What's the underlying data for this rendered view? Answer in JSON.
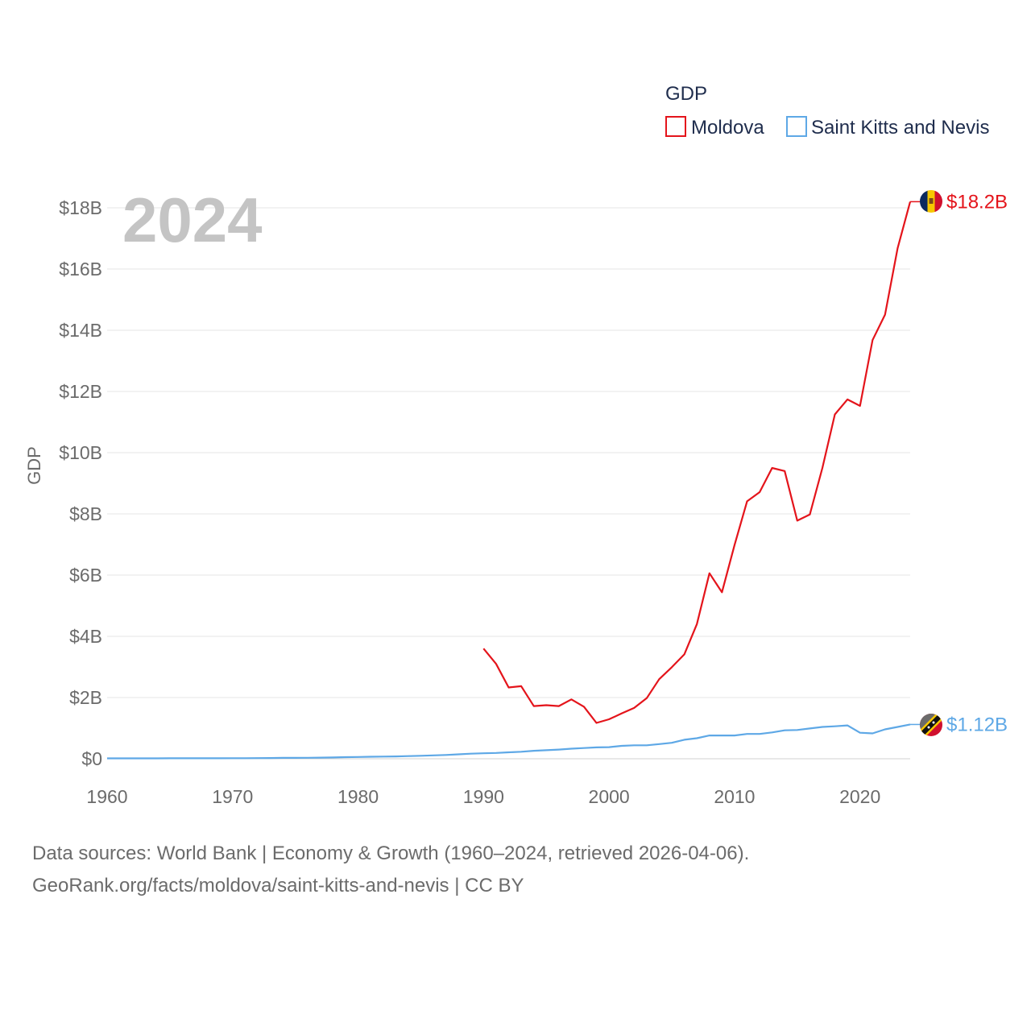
{
  "chart_data": {
    "type": "line",
    "title": "GDP",
    "ylabel": "GDP",
    "xlabel": "",
    "year_label": "2024",
    "xlim": [
      1960,
      2024
    ],
    "ylim": [
      0,
      18500000000
    ],
    "x_ticks": [
      {
        "value": 1960,
        "label": "1960"
      },
      {
        "value": 1970,
        "label": "1970"
      },
      {
        "value": 1980,
        "label": "1980"
      },
      {
        "value": 1990,
        "label": "1990"
      },
      {
        "value": 2000,
        "label": "2000"
      },
      {
        "value": 2010,
        "label": "2010"
      },
      {
        "value": 2020,
        "label": "2020"
      }
    ],
    "y_ticks": [
      {
        "value": 0,
        "label": "$0"
      },
      {
        "value": 2000000000,
        "label": "$2B"
      },
      {
        "value": 4000000000,
        "label": "$4B"
      },
      {
        "value": 6000000000,
        "label": "$6B"
      },
      {
        "value": 8000000000,
        "label": "$8B"
      },
      {
        "value": 10000000000,
        "label": "$10B"
      },
      {
        "value": 12000000000,
        "label": "$12B"
      },
      {
        "value": 14000000000,
        "label": "$14B"
      },
      {
        "value": 16000000000,
        "label": "$16B"
      },
      {
        "value": 18000000000,
        "label": "$18B"
      }
    ],
    "grid": true,
    "legend_position": "top-right",
    "series": [
      {
        "name": "Moldova",
        "color": "#e4141b",
        "end_label": "$18.2B",
        "flag_icon": "moldova-flag-icon",
        "x": [
          1990,
          1991,
          1992,
          1993,
          1994,
          1995,
          1996,
          1997,
          1998,
          1999,
          2000,
          2001,
          2002,
          2003,
          2004,
          2005,
          2006,
          2007,
          2008,
          2009,
          2010,
          2011,
          2012,
          2013,
          2014,
          2015,
          2016,
          2017,
          2018,
          2019,
          2020,
          2021,
          2022,
          2023,
          2024
        ],
        "values": [
          3600000000,
          3100000000,
          2330000000,
          2370000000,
          1720000000,
          1750000000,
          1720000000,
          1940000000,
          1700000000,
          1170000000,
          1290000000,
          1480000000,
          1660000000,
          1980000000,
          2600000000,
          2990000000,
          3410000000,
          4400000000,
          6060000000,
          5440000000,
          6980000000,
          8410000000,
          8710000000,
          9500000000,
          9400000000,
          7780000000,
          7980000000,
          9500000000,
          11250000000,
          11740000000,
          11530000000,
          13680000000,
          14510000000,
          16680000000,
          18200000000
        ]
      },
      {
        "name": "Saint Kitts and Nevis",
        "color": "#5ea8e6",
        "end_label": "$1.12B",
        "flag_icon": "saint-kitts-and-nevis-flag-icon",
        "x": [
          1960,
          1961,
          1962,
          1963,
          1964,
          1965,
          1966,
          1967,
          1968,
          1969,
          1970,
          1971,
          1972,
          1973,
          1974,
          1975,
          1976,
          1977,
          1978,
          1979,
          1980,
          1981,
          1982,
          1983,
          1984,
          1985,
          1986,
          1987,
          1988,
          1989,
          1990,
          1991,
          1992,
          1993,
          1994,
          1995,
          1996,
          1997,
          1998,
          1999,
          2000,
          2001,
          2002,
          2003,
          2004,
          2005,
          2006,
          2007,
          2008,
          2009,
          2010,
          2011,
          2012,
          2013,
          2014,
          2015,
          2016,
          2017,
          2018,
          2019,
          2020,
          2021,
          2022,
          2023,
          2024
        ],
        "values": [
          12000000,
          12500000,
          13000000,
          13500000,
          14000000,
          15000000,
          15500000,
          16000000,
          16500000,
          17000000,
          17500000,
          19000000,
          21000000,
          24000000,
          28000000,
          30000000,
          32000000,
          37000000,
          43000000,
          52000000,
          59000000,
          67000000,
          70000000,
          76000000,
          86000000,
          97000000,
          110000000,
          125000000,
          145000000,
          165000000,
          180000000,
          190000000,
          210000000,
          230000000,
          260000000,
          280000000,
          300000000,
          330000000,
          350000000,
          370000000,
          380000000,
          420000000,
          440000000,
          440000000,
          480000000,
          520000000,
          620000000,
          670000000,
          760000000,
          760000000,
          760000000,
          810000000,
          810000000,
          860000000,
          930000000,
          940000000,
          990000000,
          1040000000,
          1060000000,
          1090000000,
          850000000,
          830000000,
          960000000,
          1040000000,
          1120000000
        ]
      }
    ]
  },
  "sources": {
    "line1": "Data sources: World Bank | Economy & Growth (1960–2024, retrieved 2026-04-06).",
    "line2": "GeoRank.org/facts/moldova/saint-kitts-and-nevis | CC BY"
  }
}
